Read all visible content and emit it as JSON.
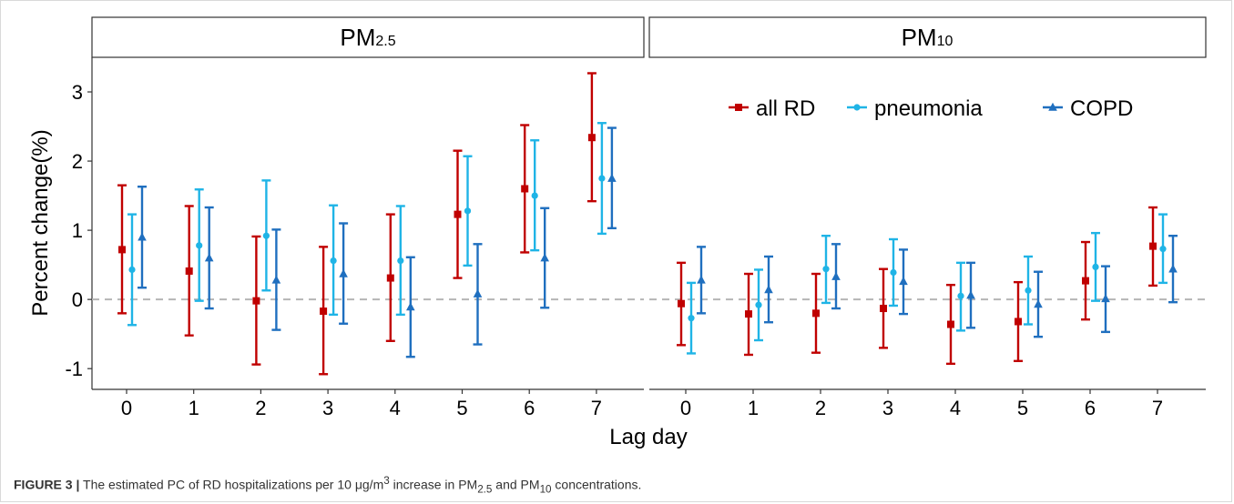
{
  "chart_data": {
    "type": "scatter",
    "subtype": "point-with-error-bars",
    "xlabel": "Lag day",
    "ylabel": "Percent change(%)",
    "ylim": [
      -1.3,
      3.5
    ],
    "yticks": [
      "3",
      "2",
      "1",
      "0",
      "-1"
    ],
    "ytick_values": [
      3,
      2,
      1,
      0,
      -1
    ],
    "x": [
      0,
      1,
      2,
      3,
      4,
      5,
      6,
      7
    ],
    "xtick_labels": [
      "0",
      "1",
      "2",
      "3",
      "4",
      "5",
      "6",
      "7"
    ],
    "reference_line": 0,
    "grid": false,
    "legend_position": "top-right",
    "legend": [
      {
        "name": "all RD",
        "color": "#c00000",
        "marker": "square"
      },
      {
        "name": "pneumonia",
        "color": "#1fb4e6",
        "marker": "circle"
      },
      {
        "name": "COPD",
        "color": "#1f6fbf",
        "marker": "triangle"
      }
    ],
    "panels": [
      {
        "title_main": "PM",
        "title_sub": "2.5",
        "series": [
          {
            "name": "all RD",
            "values": [
              0.72,
              0.41,
              -0.02,
              -0.17,
              0.31,
              1.23,
              1.6,
              2.34
            ],
            "lower": [
              -0.2,
              -0.52,
              -0.94,
              -1.08,
              -0.6,
              0.31,
              0.68,
              1.42
            ],
            "upper": [
              1.65,
              1.35,
              0.91,
              0.76,
              1.23,
              2.15,
              2.52,
              3.27
            ]
          },
          {
            "name": "pneumonia",
            "values": [
              0.43,
              0.78,
              0.92,
              0.56,
              0.56,
              1.28,
              1.5,
              1.75
            ],
            "lower": [
              -0.37,
              -0.02,
              0.13,
              -0.22,
              -0.22,
              0.49,
              0.71,
              0.95
            ],
            "upper": [
              1.23,
              1.59,
              1.72,
              1.36,
              1.35,
              2.07,
              2.3,
              2.55
            ]
          },
          {
            "name": "COPD",
            "values": [
              0.9,
              0.6,
              0.28,
              0.37,
              -0.11,
              0.08,
              0.6,
              1.75
            ],
            "lower": [
              0.17,
              -0.13,
              -0.44,
              -0.35,
              -0.83,
              -0.65,
              -0.12,
              1.03
            ],
            "upper": [
              1.63,
              1.33,
              1.01,
              1.1,
              0.61,
              0.8,
              1.32,
              2.48
            ]
          }
        ]
      },
      {
        "title_main": "PM",
        "title_sub": "10",
        "series": [
          {
            "name": "all RD",
            "values": [
              -0.06,
              -0.21,
              -0.2,
              -0.13,
              -0.36,
              -0.32,
              0.27,
              0.77
            ],
            "lower": [
              -0.66,
              -0.8,
              -0.77,
              -0.7,
              -0.93,
              -0.89,
              -0.29,
              0.2
            ],
            "upper": [
              0.53,
              0.37,
              0.37,
              0.44,
              0.21,
              0.25,
              0.83,
              1.33
            ]
          },
          {
            "name": "pneumonia",
            "values": [
              -0.27,
              -0.08,
              0.44,
              0.39,
              0.05,
              0.13,
              0.47,
              0.73
            ],
            "lower": [
              -0.78,
              -0.59,
              -0.05,
              -0.09,
              -0.45,
              -0.36,
              -0.02,
              0.24
            ],
            "upper": [
              0.24,
              0.43,
              0.92,
              0.87,
              0.53,
              0.62,
              0.96,
              1.23
            ]
          },
          {
            "name": "COPD",
            "values": [
              0.28,
              0.14,
              0.33,
              0.26,
              0.06,
              -0.07,
              0.01,
              0.44
            ],
            "lower": [
              -0.2,
              -0.33,
              -0.13,
              -0.21,
              -0.41,
              -0.54,
              -0.47,
              -0.04
            ],
            "upper": [
              0.76,
              0.62,
              0.8,
              0.72,
              0.53,
              0.4,
              0.48,
              0.92
            ]
          }
        ]
      }
    ]
  },
  "caption": {
    "label": "FIGURE 3 |",
    "text_part1": " The estimated PC of RD hospitalizations per 10 μg/m",
    "sup": "3",
    "text_part2": " increase in PM",
    "sub1": "2.5",
    "text_part3": " and PM",
    "sub2": "10",
    "text_part4": " concentrations."
  }
}
